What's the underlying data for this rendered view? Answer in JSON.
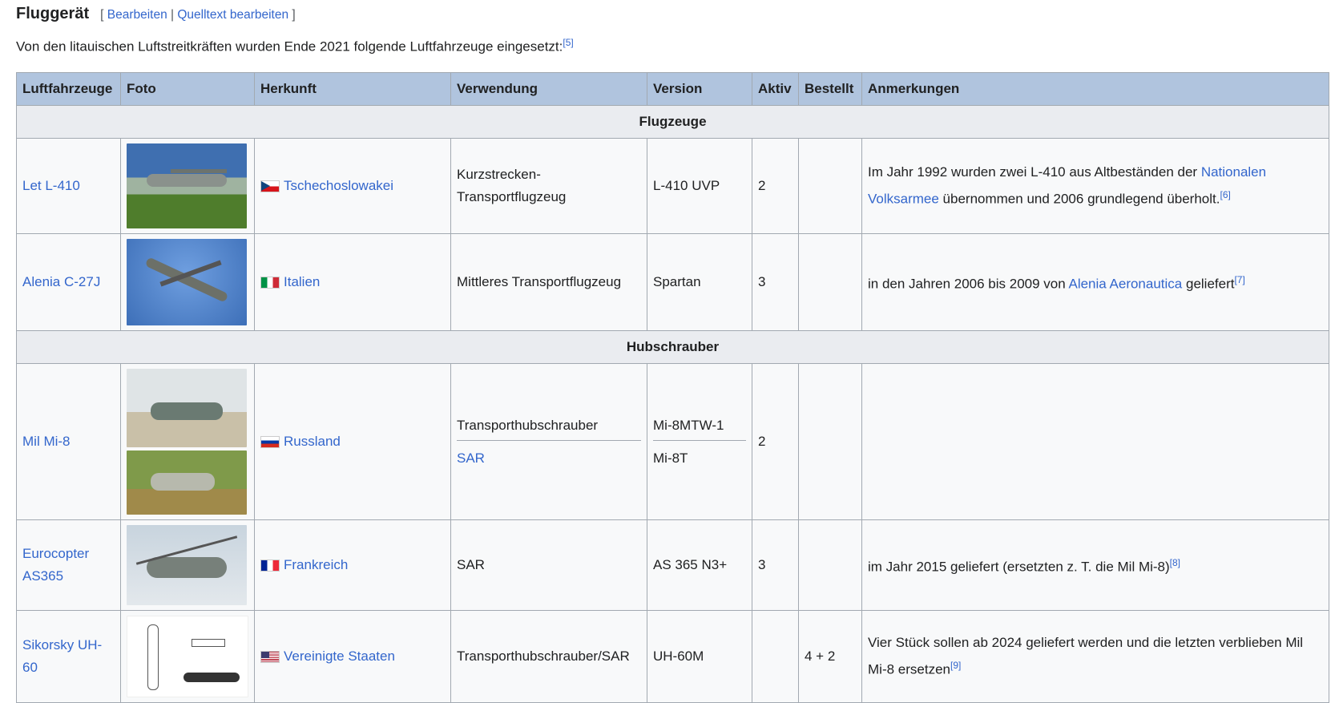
{
  "section": {
    "title": "Fluggerät",
    "edit": "Bearbeiten",
    "edit_source": "Quelltext bearbeiten"
  },
  "intro": {
    "text": "Von den litauischen Luftstreitkräften wurden Ende 2021 folgende Luftfahrzeuge eingesetzt:",
    "ref": "[5]"
  },
  "headers": [
    "Luftfahrzeuge",
    "Foto",
    "Herkunft",
    "Verwendung",
    "Version",
    "Aktiv",
    "Bestellt",
    "Anmerkungen"
  ],
  "groups": {
    "planes": "Flugzeuge",
    "helis": "Hubschrauber"
  },
  "rows": [
    {
      "name": "Let L-410",
      "country": "Tschechoslowakei",
      "use": "Kurzstrecken-Transportflugzeug",
      "version": "L-410 UVP",
      "active": "2",
      "ordered": "",
      "note_a": "Im Jahr 1992 wurden zwei L-410 aus Altbeständen der ",
      "note_link": "Nationalen Volksarmee",
      "note_b": " übernommen und 2006 grundlegend überholt.",
      "ref": "[6]"
    },
    {
      "name": "Alenia C-27J",
      "country": "Italien",
      "use": "Mittleres Transportflugzeug",
      "version": "Spartan",
      "active": "3",
      "ordered": "",
      "note_a": "in den Jahren 2006 bis 2009 von ",
      "note_link": "Alenia Aeronautica",
      "note_b": " geliefert",
      "ref": "[7]"
    },
    {
      "name": "Mil Mi-8",
      "country": "Russland",
      "use": "Transporthubschrauber",
      "use2": "SAR",
      "version": "Mi-8MTW-1",
      "version2": "Mi-8T",
      "active": "2",
      "ordered": ""
    },
    {
      "name": "Eurocopter AS365",
      "country": "Frankreich",
      "use": "SAR",
      "version": "AS 365 N3+",
      "active": "3",
      "ordered": "",
      "note_a": "im Jahr 2015 geliefert (ersetzten z. T. die Mil Mi-8)",
      "ref": "[8]"
    },
    {
      "name": "Sikorsky UH-60",
      "country": "Vereinigte Staaten",
      "use": "Transporthubschrauber/SAR",
      "version": "UH-60M",
      "active": "",
      "ordered": "4 + 2",
      "note_a": "Vier Stück sollen ab 2024 geliefert werden und die letzten verblieben Mil Mi-8 ersetzen",
      "ref": "[9]"
    }
  ]
}
